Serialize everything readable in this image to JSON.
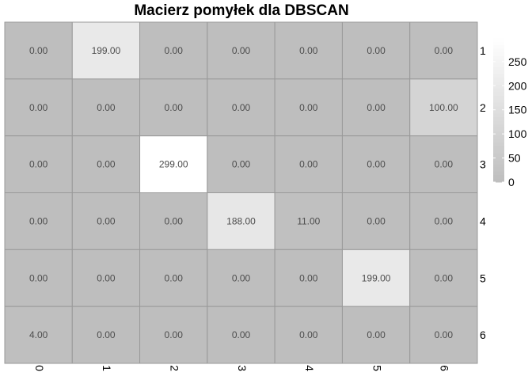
{
  "chart_data": {
    "type": "heatmap",
    "title": "Macierz pomyłek dla DBSCAN",
    "x_categories": [
      "0",
      "1",
      "2",
      "3",
      "4",
      "5",
      "6"
    ],
    "y_categories": [
      "1",
      "2",
      "3",
      "4",
      "5",
      "6"
    ],
    "values": [
      [
        0.0,
        199.0,
        0.0,
        0.0,
        0.0,
        0.0,
        0.0
      ],
      [
        0.0,
        0.0,
        0.0,
        0.0,
        0.0,
        0.0,
        100.0
      ],
      [
        0.0,
        0.0,
        299.0,
        0.0,
        0.0,
        0.0,
        0.0
      ],
      [
        0.0,
        0.0,
        0.0,
        188.0,
        11.0,
        0.0,
        0.0
      ],
      [
        0.0,
        0.0,
        0.0,
        0.0,
        0.0,
        199.0,
        0.0
      ],
      [
        4.0,
        0.0,
        0.0,
        0.0,
        0.0,
        0.0,
        0.0
      ]
    ],
    "value_format": "0.00",
    "color_scale": {
      "min": 0,
      "max": 299,
      "low_color": "#bebebe",
      "high_color": "#ffffff"
    },
    "legend": {
      "position": "right",
      "ticks": [
        0,
        50,
        100,
        150,
        200,
        250
      ]
    },
    "grid_color": "#999999"
  }
}
